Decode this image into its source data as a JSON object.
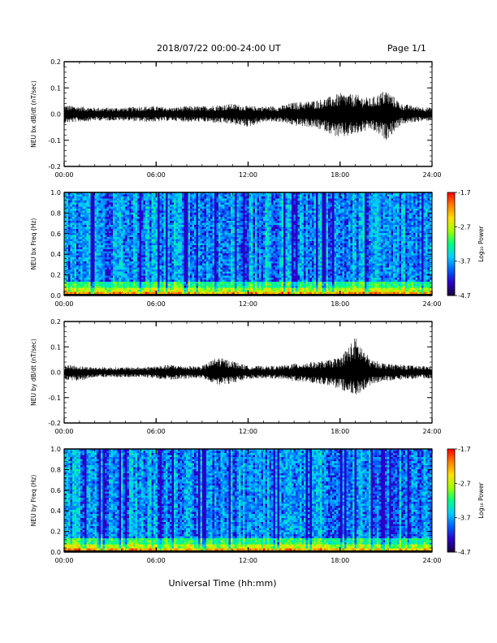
{
  "header": {
    "title": "2018/07/22  00:00-24:00 UT",
    "page": "Page 1/1"
  },
  "colormap": [
    "#1a003a",
    "#2a00c8",
    "#0060ff",
    "#00d0ff",
    "#00ff80",
    "#a0ff00",
    "#ffe000",
    "#ff8000",
    "#ff0000"
  ],
  "chart_data": [
    {
      "type": "line",
      "name": "bx-waveform",
      "ylabel": "NEU bx dB/dt (nT/sec)",
      "xlim": [
        0,
        24
      ],
      "ylim": [
        -0.2,
        0.2
      ],
      "y_ticks": [
        -0.2,
        -0.1,
        0.0,
        0.1,
        0.2
      ],
      "y_tick_labels": [
        "-0.2",
        "-0.1",
        "0.0",
        "0.1",
        "0.2"
      ],
      "x_ticks": [
        0,
        6,
        12,
        18,
        24
      ],
      "x_tick_labels": [
        "00:00",
        "06:00",
        "12:00",
        "18:00",
        "24:00"
      ],
      "amplitude_envelope": {
        "hours": [
          0,
          1,
          2,
          3,
          4,
          5,
          6,
          7,
          8,
          9,
          10,
          11,
          12,
          13,
          14,
          15,
          16,
          17,
          18,
          19,
          20,
          21,
          22,
          23,
          24
        ],
        "max": [
          0.035,
          0.03,
          0.025,
          0.025,
          0.025,
          0.03,
          0.03,
          0.025,
          0.03,
          0.03,
          0.035,
          0.04,
          0.03,
          0.03,
          0.03,
          0.045,
          0.05,
          0.06,
          0.08,
          0.075,
          0.06,
          0.095,
          0.04,
          0.03,
          0.025
        ],
        "min": [
          -0.035,
          -0.03,
          -0.025,
          -0.025,
          -0.025,
          -0.03,
          -0.03,
          -0.025,
          -0.03,
          -0.03,
          -0.035,
          -0.04,
          -0.05,
          -0.03,
          -0.03,
          -0.045,
          -0.05,
          -0.065,
          -0.095,
          -0.08,
          -0.06,
          -0.1,
          -0.04,
          -0.03,
          -0.025
        ]
      }
    },
    {
      "type": "heatmap",
      "name": "bx-spectrogram",
      "ylabel": "NEU bx Freq (Hz)",
      "xlim": [
        0,
        24
      ],
      "ylim": [
        0.0,
        1.0
      ],
      "y_ticks": [
        0.0,
        0.2,
        0.4,
        0.6,
        0.8,
        1.0
      ],
      "y_tick_labels": [
        "0.0",
        "0.2",
        "0.4",
        "0.6",
        "0.8",
        "1.0"
      ],
      "x_ticks": [
        0,
        6,
        12,
        18,
        24
      ],
      "x_tick_labels": [
        "00:00",
        "06:00",
        "12:00",
        "18:00",
        "24:00"
      ],
      "colorbar": {
        "label": "Log₁₀ Power",
        "range": [
          -4.7,
          -1.7
        ],
        "ticks": [
          -1.7,
          -2.7,
          -3.7,
          -4.7
        ],
        "tick_labels": [
          "-1.7",
          "-2.7",
          "-3.7",
          "-4.7"
        ]
      }
    },
    {
      "type": "line",
      "name": "by-waveform",
      "ylabel": "NEU by dB/dt (nT/sec)",
      "xlim": [
        0,
        24
      ],
      "ylim": [
        -0.2,
        0.2
      ],
      "y_ticks": [
        -0.2,
        -0.1,
        0.0,
        0.1,
        0.2
      ],
      "y_tick_labels": [
        "-0.2",
        "-0.1",
        "0.0",
        "0.1",
        "0.2"
      ],
      "x_ticks": [
        0,
        6,
        12,
        18,
        24
      ],
      "x_tick_labels": [
        "00:00",
        "06:00",
        "12:00",
        "18:00",
        "24:00"
      ],
      "amplitude_envelope": {
        "hours": [
          0,
          1,
          2,
          3,
          4,
          5,
          6,
          7,
          8,
          9,
          10,
          11,
          12,
          13,
          14,
          15,
          16,
          17,
          18,
          19,
          20,
          21,
          22,
          23,
          24
        ],
        "max": [
          0.03,
          0.025,
          0.02,
          0.02,
          0.02,
          0.02,
          0.025,
          0.03,
          0.025,
          0.025,
          0.06,
          0.045,
          0.025,
          0.025,
          0.025,
          0.035,
          0.04,
          0.045,
          0.06,
          0.14,
          0.05,
          0.035,
          0.03,
          0.025,
          0.025
        ],
        "min": [
          -0.03,
          -0.035,
          -0.02,
          -0.02,
          -0.02,
          -0.02,
          -0.025,
          -0.03,
          -0.025,
          -0.025,
          -0.05,
          -0.045,
          -0.025,
          -0.025,
          -0.025,
          -0.035,
          -0.04,
          -0.05,
          -0.07,
          -0.095,
          -0.05,
          -0.035,
          -0.03,
          -0.025,
          -0.025
        ]
      }
    },
    {
      "type": "heatmap",
      "name": "by-spectrogram",
      "ylabel": "NEU by Freq (Hz)",
      "xlabel": "Universal Time (hh:mm)",
      "xlim": [
        0,
        24
      ],
      "ylim": [
        0.0,
        1.0
      ],
      "y_ticks": [
        0.0,
        0.2,
        0.4,
        0.6,
        0.8,
        1.0
      ],
      "y_tick_labels": [
        "0.0",
        "0.2",
        "0.4",
        "0.6",
        "0.8",
        "1.0"
      ],
      "x_ticks": [
        0,
        6,
        12,
        18,
        24
      ],
      "x_tick_labels": [
        "00:00",
        "06:00",
        "12:00",
        "18:00",
        "24:00"
      ],
      "colorbar": {
        "label": "Log₁₀ Power",
        "range": [
          -4.7,
          -1.7
        ],
        "ticks": [
          -1.7,
          -2.7,
          -3.7,
          -4.7
        ],
        "tick_labels": [
          "-1.7",
          "-2.7",
          "-3.7",
          "-4.7"
        ]
      }
    }
  ]
}
